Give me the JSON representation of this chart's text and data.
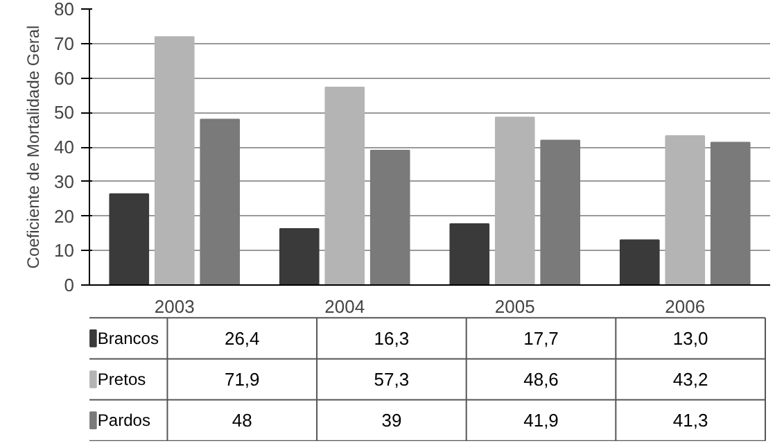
{
  "chart_data": {
    "type": "bar",
    "ylabel": "Coeficiente de Mortalidade Geral",
    "categories": [
      "2003",
      "2004",
      "2005",
      "2006"
    ],
    "series": [
      {
        "name": "Brancos",
        "color": "#3a3a3a",
        "values": [
          26.4,
          16.3,
          17.7,
          13.0
        ],
        "value_labels": [
          "26,4",
          "16,3",
          "17,7",
          "13,0"
        ]
      },
      {
        "name": "Pretos",
        "color": "#b4b4b4",
        "values": [
          71.9,
          57.3,
          48.6,
          43.2
        ],
        "value_labels": [
          "71,9",
          "57,3",
          "48,6",
          "43,2"
        ]
      },
      {
        "name": "Pardos",
        "color": "#7a7a7a",
        "values": [
          48,
          39,
          41.9,
          41.3
        ],
        "value_labels": [
          "48",
          "39",
          "41,9",
          "41,3"
        ]
      }
    ],
    "ylim": [
      0,
      80
    ],
    "yticks": [
      0,
      10,
      20,
      30,
      40,
      50,
      60,
      70,
      80
    ],
    "grid": "y",
    "legend": "bottom"
  }
}
